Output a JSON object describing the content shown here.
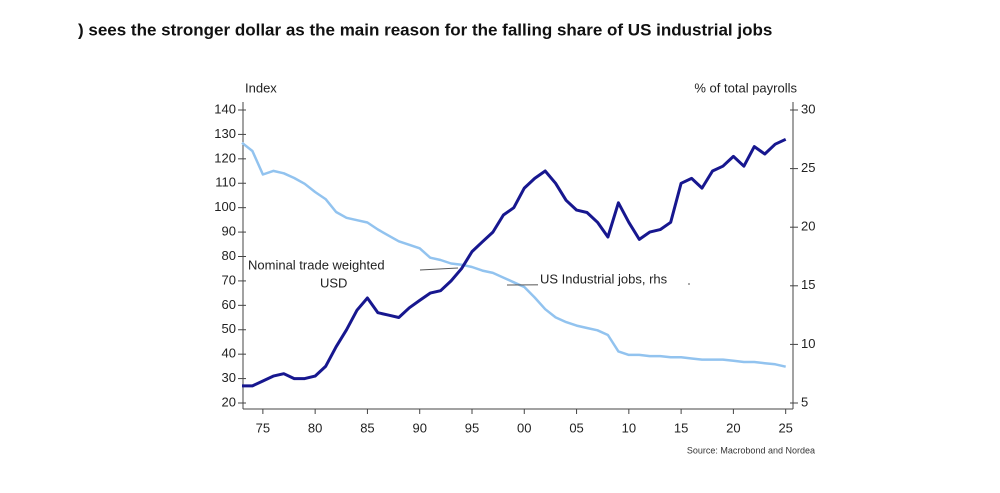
{
  "chart_data": {
    "type": "line",
    "title": ") sees the stronger dollar as the main reason for the falling share of US industrial jobs",
    "y_label": "Index",
    "y2_label": "% of total payrolls",
    "source": "Source: Macrobond and Nordea",
    "annotations": [
      "Nominal trade weighted",
      "USD",
      "US Industrial jobs, rhs"
    ],
    "x": [
      1973,
      1974,
      1975,
      1976,
      1977,
      1978,
      1979,
      1980,
      1981,
      1982,
      1983,
      1984,
      1985,
      1986,
      1987,
      1988,
      1989,
      1990,
      1991,
      1992,
      1993,
      1994,
      1995,
      1996,
      1997,
      1998,
      1999,
      2000,
      2001,
      2002,
      2003,
      2004,
      2005,
      2006,
      2007,
      2008,
      2009,
      2010,
      2011,
      2012,
      2013,
      2014,
      2015,
      2016,
      2017,
      2018,
      2019,
      2020,
      2021,
      2022,
      2023,
      2024,
      2025
    ],
    "series": [
      {
        "name": "Nominal trade weighted USD",
        "color": "#17178f",
        "values": [
          27,
          27,
          29,
          31,
          32,
          30,
          30,
          31,
          35,
          43,
          50,
          58,
          63,
          57,
          56,
          55,
          59,
          62,
          65,
          66,
          70,
          75,
          82,
          86,
          90,
          97,
          100,
          108,
          112,
          115,
          110,
          103,
          99,
          98,
          94,
          88,
          102,
          94,
          87,
          90,
          91,
          94,
          110,
          112,
          108,
          115,
          117,
          121,
          117,
          125,
          122,
          126,
          128
        ]
      },
      {
        "name": "US Industrial jobs, rhs",
        "color": "#92c3ef",
        "axis": "y2",
        "values": [
          27.2,
          26.5,
          24.5,
          24.8,
          24.6,
          24.2,
          23.7,
          23.0,
          22.4,
          21.3,
          20.8,
          20.6,
          20.4,
          19.8,
          19.3,
          18.8,
          18.5,
          18.2,
          17.4,
          17.2,
          16.9,
          16.8,
          16.6,
          16.3,
          16.1,
          15.7,
          15.3,
          14.9,
          14.0,
          13.0,
          12.3,
          11.9,
          11.6,
          11.4,
          11.2,
          10.8,
          9.4,
          9.1,
          9.1,
          9.0,
          9.0,
          8.9,
          8.9,
          8.8,
          8.7,
          8.7,
          8.7,
          8.6,
          8.5,
          8.5,
          8.4,
          8.3,
          8.1
        ]
      }
    ],
    "xlim": [
      1973.1,
      2025.7
    ],
    "xticks": [
      {
        "value": 1975,
        "label": "75"
      },
      {
        "value": 1980,
        "label": "80"
      },
      {
        "value": 1985,
        "label": "85"
      },
      {
        "value": 1990,
        "label": "90"
      },
      {
        "value": 1995,
        "label": "95"
      },
      {
        "value": 2000,
        "label": "00"
      },
      {
        "value": 2005,
        "label": "05"
      },
      {
        "value": 2010,
        "label": "10"
      },
      {
        "value": 2015,
        "label": "15"
      },
      {
        "value": 2020,
        "label": "20"
      },
      {
        "value": 2025,
        "label": "25"
      }
    ],
    "ylim": [
      20,
      140
    ],
    "yticks": [
      20,
      30,
      40,
      50,
      60,
      70,
      80,
      90,
      100,
      110,
      120,
      130,
      140
    ],
    "y2lim": [
      5,
      30
    ],
    "y2ticks": [
      5,
      10,
      15,
      20,
      25,
      30
    ],
    "grid": false
  }
}
